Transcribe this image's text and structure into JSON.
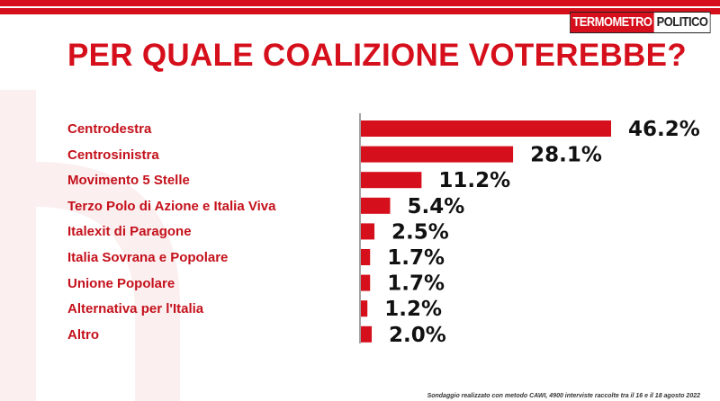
{
  "brand": {
    "logo_part1": "TERMOMETRO",
    "logo_part2": "POLITICO",
    "accent_color": "#d50f1b"
  },
  "title": "PER QUALE COALIZIONE VOTEREBBE?",
  "footnote": "Sondaggio realizzato con metodo CAWI, 4900 interviste raccolte tra il 16 e il 18 agosto 2022",
  "chart_data": {
    "type": "bar",
    "orientation": "horizontal",
    "title": "PER QUALE COALIZIONE VOTEREBBE?",
    "xlabel": "",
    "ylabel": "",
    "xlim": [
      0,
      50
    ],
    "grid": false,
    "categories": [
      "Centrodestra",
      "Centrosinistra",
      "Movimento 5 Stelle",
      "Terzo Polo di Azione e Italia Viva",
      "Italexit di Paragone",
      "Italia Sovrana e Popolare",
      "Unione Popolare",
      "Alternativa per l'Italia",
      "Altro"
    ],
    "values": [
      46.2,
      28.1,
      11.2,
      5.4,
      2.5,
      1.7,
      1.7,
      1.2,
      2.0
    ],
    "value_labels": [
      "46.2%",
      "28.1%",
      "11.2%",
      "5.4%",
      "2.5%",
      "1.7%",
      "1.7%",
      "1.2%",
      "2.0%"
    ],
    "bar_color": "#d50f1b"
  }
}
